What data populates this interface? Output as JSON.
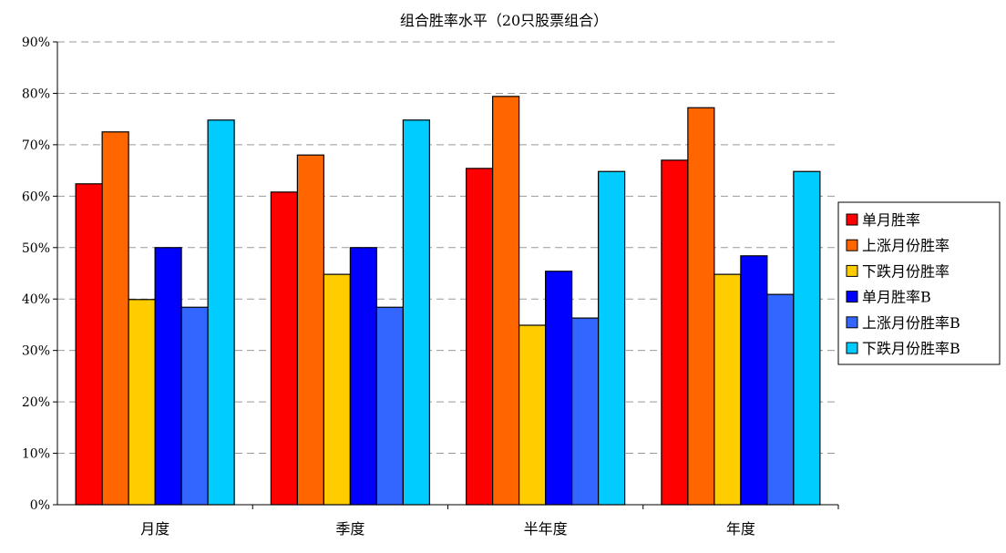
{
  "chart_data": {
    "type": "bar",
    "title": "组合胜率水平（20只股票组合）",
    "categories": [
      "月度",
      "季度",
      "半年度",
      "年度"
    ],
    "ylim": [
      0,
      90
    ],
    "yticks": [
      "0%",
      "10%",
      "20%",
      "30%",
      "40%",
      "50%",
      "60%",
      "70%",
      "80%",
      "90%"
    ],
    "grid": true,
    "legend_position": "right",
    "series": [
      {
        "name": "单月胜率",
        "color": "#FF0000",
        "values": [
          62.4,
          60.8,
          65.4,
          67.0
        ]
      },
      {
        "name": "上涨月份胜率",
        "color": "#FF6600",
        "values": [
          72.5,
          68.0,
          79.4,
          77.2
        ]
      },
      {
        "name": "下跌月份胜率",
        "color": "#FFCC00",
        "values": [
          39.9,
          44.8,
          34.9,
          44.8
        ]
      },
      {
        "name": "单月胜率B",
        "color": "#0000FF",
        "values": [
          50.0,
          50.0,
          45.4,
          48.4
        ]
      },
      {
        "name": "上涨月份胜率B",
        "color": "#3366FF",
        "values": [
          38.4,
          38.4,
          36.3,
          40.9
        ]
      },
      {
        "name": "下跌月份胜率B",
        "color": "#00CCFF",
        "values": [
          74.8,
          74.8,
          64.8,
          64.8
        ]
      }
    ]
  }
}
